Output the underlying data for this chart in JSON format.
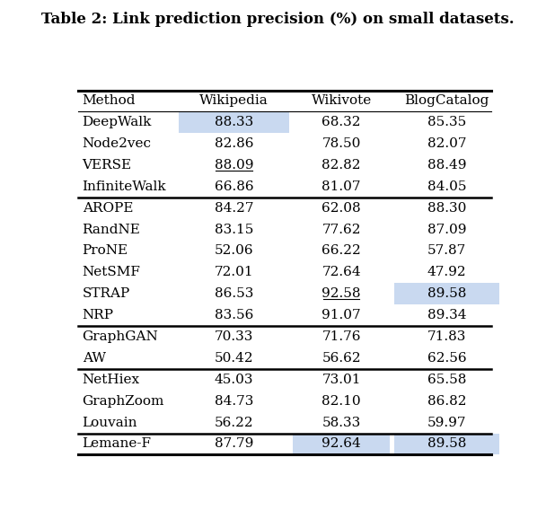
{
  "title": "Table 2: Link prediction precision (%) on small datasets.",
  "columns": [
    "Method",
    "Wikipedia",
    "Wikivote",
    "BlogCatalog"
  ],
  "rows": [
    {
      "method": "DeepWalk",
      "wikipedia": "88.33",
      "wikivote": "68.32",
      "blogcatalog": "85.35",
      "highlight_wiki": true,
      "highlight_wikivote": false,
      "highlight_blog": false,
      "underline_wiki": false,
      "underline_wikivote": false
    },
    {
      "method": "Node2vec",
      "wikipedia": "82.86",
      "wikivote": "78.50",
      "blogcatalog": "82.07",
      "highlight_wiki": false,
      "highlight_wikivote": false,
      "highlight_blog": false,
      "underline_wiki": false,
      "underline_wikivote": false
    },
    {
      "method": "VERSE",
      "wikipedia": "88.09",
      "wikivote": "82.82",
      "blogcatalog": "88.49",
      "highlight_wiki": false,
      "highlight_wikivote": false,
      "highlight_blog": false,
      "underline_wiki": true,
      "underline_wikivote": false
    },
    {
      "method": "InfiniteWalk",
      "wikipedia": "66.86",
      "wikivote": "81.07",
      "blogcatalog": "84.05",
      "highlight_wiki": false,
      "highlight_wikivote": false,
      "highlight_blog": false,
      "underline_wiki": false,
      "underline_wikivote": false
    },
    {
      "method": "AROPE",
      "wikipedia": "84.27",
      "wikivote": "62.08",
      "blogcatalog": "88.30",
      "highlight_wiki": false,
      "highlight_wikivote": false,
      "highlight_blog": false,
      "underline_wiki": false,
      "underline_wikivote": false
    },
    {
      "method": "RandNE",
      "wikipedia": "83.15",
      "wikivote": "77.62",
      "blogcatalog": "87.09",
      "highlight_wiki": false,
      "highlight_wikivote": false,
      "highlight_blog": false,
      "underline_wiki": false,
      "underline_wikivote": false
    },
    {
      "method": "ProNE",
      "wikipedia": "52.06",
      "wikivote": "66.22",
      "blogcatalog": "57.87",
      "highlight_wiki": false,
      "highlight_wikivote": false,
      "highlight_blog": false,
      "underline_wiki": false,
      "underline_wikivote": false
    },
    {
      "method": "NetSMF",
      "wikipedia": "72.01",
      "wikivote": "72.64",
      "blogcatalog": "47.92",
      "highlight_wiki": false,
      "highlight_wikivote": false,
      "highlight_blog": false,
      "underline_wiki": false,
      "underline_wikivote": false
    },
    {
      "method": "STRAP",
      "wikipedia": "86.53",
      "wikivote": "92.58",
      "blogcatalog": "89.58",
      "highlight_wiki": false,
      "highlight_wikivote": false,
      "highlight_blog": true,
      "underline_wiki": false,
      "underline_wikivote": true
    },
    {
      "method": "NRP",
      "wikipedia": "83.56",
      "wikivote": "91.07",
      "blogcatalog": "89.34",
      "highlight_wiki": false,
      "highlight_wikivote": false,
      "highlight_blog": false,
      "underline_wiki": false,
      "underline_wikivote": false
    },
    {
      "method": "GraphGAN",
      "wikipedia": "70.33",
      "wikivote": "71.76",
      "blogcatalog": "71.83",
      "highlight_wiki": false,
      "highlight_wikivote": false,
      "highlight_blog": false,
      "underline_wiki": false,
      "underline_wikivote": false
    },
    {
      "method": "AW",
      "wikipedia": "50.42",
      "wikivote": "56.62",
      "blogcatalog": "62.56",
      "highlight_wiki": false,
      "highlight_wikivote": false,
      "highlight_blog": false,
      "underline_wiki": false,
      "underline_wikivote": false
    },
    {
      "method": "NetHiex",
      "wikipedia": "45.03",
      "wikivote": "73.01",
      "blogcatalog": "65.58",
      "highlight_wiki": false,
      "highlight_wikivote": false,
      "highlight_blog": false,
      "underline_wiki": false,
      "underline_wikivote": false
    },
    {
      "method": "GraphZoom",
      "wikipedia": "84.73",
      "wikivote": "82.10",
      "blogcatalog": "86.82",
      "highlight_wiki": false,
      "highlight_wikivote": false,
      "highlight_blog": false,
      "underline_wiki": false,
      "underline_wikivote": false
    },
    {
      "method": "Louvain",
      "wikipedia": "56.22",
      "wikivote": "58.33",
      "blogcatalog": "59.97",
      "highlight_wiki": false,
      "highlight_wikivote": false,
      "highlight_blog": false,
      "underline_wiki": false,
      "underline_wikivote": false
    },
    {
      "method": "Lemane-F",
      "wikipedia": "87.79",
      "wikivote": "92.64",
      "blogcatalog": "89.58",
      "highlight_wiki": false,
      "highlight_wikivote": true,
      "highlight_blog": true,
      "underline_wiki": false,
      "underline_wikivote": false
    }
  ],
  "group_separators_after": [
    3,
    9,
    11,
    14
  ],
  "highlight_color": "#c9d9f0",
  "background_color": "#ffffff",
  "font_size": 11.0,
  "title_font_size": 12
}
